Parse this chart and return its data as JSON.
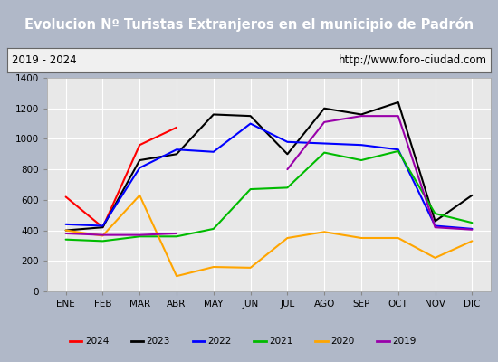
{
  "title": "Evolucion Nº Turistas Extranjeros en el municipio de Padrón",
  "subtitle_left": "2019 - 2024",
  "subtitle_right": "http://www.foro-ciudad.com",
  "months": [
    "ENE",
    "FEB",
    "MAR",
    "ABR",
    "MAY",
    "JUN",
    "JUL",
    "AGO",
    "SEP",
    "OCT",
    "NOV",
    "DIC"
  ],
  "series": {
    "2024": [
      620,
      420,
      960,
      1075,
      null,
      null,
      null,
      null,
      null,
      null,
      null,
      null
    ],
    "2023": [
      400,
      420,
      860,
      900,
      1160,
      1150,
      900,
      1200,
      1160,
      1240,
      460,
      630
    ],
    "2022": [
      440,
      430,
      810,
      930,
      915,
      1100,
      980,
      970,
      960,
      930,
      430,
      410
    ],
    "2021": [
      340,
      330,
      360,
      360,
      410,
      670,
      680,
      910,
      860,
      920,
      510,
      450
    ],
    "2020": [
      400,
      365,
      630,
      100,
      160,
      155,
      350,
      390,
      350,
      350,
      220,
      330
    ],
    "2019": [
      380,
      370,
      370,
      380,
      null,
      null,
      800,
      1110,
      1150,
      1150,
      420,
      405
    ]
  },
  "colors": {
    "2024": "#ff0000",
    "2023": "#000000",
    "2022": "#0000ff",
    "2021": "#00bb00",
    "2020": "#ffa500",
    "2019": "#9900aa"
  },
  "ylim": [
    0,
    1400
  ],
  "yticks": [
    0,
    200,
    400,
    600,
    800,
    1000,
    1200,
    1400
  ],
  "title_bg": "#4472c4",
  "title_color": "#ffffff",
  "plot_bg": "#e8e8e8",
  "grid_color": "#ffffff",
  "outer_bg": "#b0b8c8"
}
